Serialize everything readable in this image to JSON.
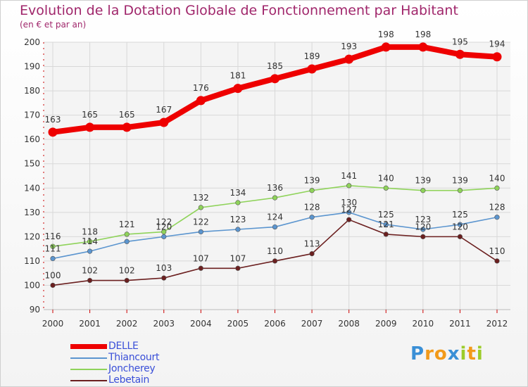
{
  "title": "Evolution de la Dotation Globale de Fonctionnement par Habitant",
  "subtitle": "(en € et par an)",
  "logo": {
    "letters": [
      "P",
      "r",
      "o",
      "x",
      "i",
      "t",
      "i"
    ],
    "colors": [
      "#3a8fd6",
      "#f29a1a",
      "#f29a1a",
      "#3a8fd6",
      "#9ccc2a",
      "#f29a1a",
      "#9ccc2a"
    ]
  },
  "chart_data": {
    "type": "line",
    "title": "Evolution de la Dotation Globale de Fonctionnement par Habitant",
    "subtitle": "(en € et par an)",
    "xlabel": "",
    "ylabel": "",
    "x": [
      "2000",
      "2001",
      "2002",
      "2003",
      "2004",
      "2005",
      "2006",
      "2007",
      "2008",
      "2009",
      "2010",
      "2011",
      "2012"
    ],
    "ylim": [
      90,
      200
    ],
    "yticks": [
      "90",
      "100",
      "110",
      "120",
      "130",
      "140",
      "150",
      "160",
      "170",
      "180",
      "190",
      "200"
    ],
    "grid": true,
    "legend_position": "bottom-left",
    "series": [
      {
        "name": "DELLE",
        "color": "#ee0000",
        "values": [
          163,
          165,
          165,
          167,
          176,
          181,
          185,
          189,
          193,
          198,
          198,
          195,
          194
        ],
        "labels": [
          "163",
          "165",
          "165",
          "167",
          "176",
          "181",
          "185",
          "189",
          "193",
          "198",
          "198",
          "195",
          "194"
        ]
      },
      {
        "name": "Thiancourt",
        "color": "#5b95cf",
        "values": [
          111,
          114,
          118,
          120,
          122,
          123,
          124,
          128,
          130,
          125,
          123,
          125,
          128
        ],
        "labels": [
          "111",
          "114",
          "",
          "120",
          "122",
          "123",
          "124",
          "128",
          "130",
          "125",
          "123",
          "125",
          "128"
        ]
      },
      {
        "name": "Joncherey",
        "color": "#8fd35a",
        "values": [
          116,
          118,
          121,
          122,
          132,
          134,
          136,
          139,
          141,
          140,
          139,
          139,
          140
        ],
        "labels": [
          "116",
          "118",
          "121",
          "122",
          "132",
          "134",
          "136",
          "139",
          "141",
          "140",
          "139",
          "139",
          "140"
        ]
      },
      {
        "name": "Lebetain",
        "color": "#6b1f1f",
        "values": [
          100,
          102,
          102,
          103,
          107,
          107,
          110,
          113,
          127,
          121,
          120,
          120,
          110
        ],
        "labels": [
          "100",
          "102",
          "102",
          "103",
          "107",
          "107",
          "110",
          "113",
          "127",
          "121",
          "120",
          "120",
          "110"
        ]
      }
    ]
  }
}
